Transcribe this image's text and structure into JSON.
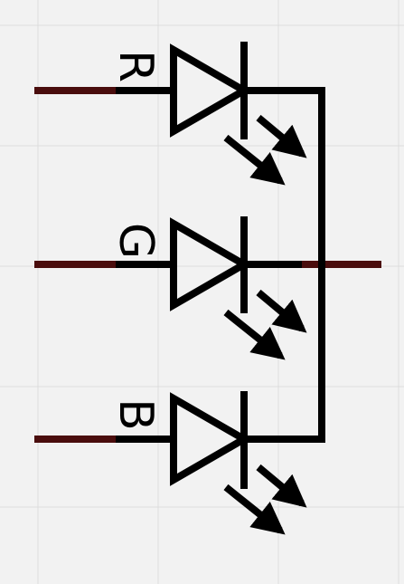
{
  "schematic": {
    "symbol": "rgb-led-common-anode",
    "pins": [
      {
        "id": "red",
        "label": "R"
      },
      {
        "id": "green",
        "label": "G"
      },
      {
        "id": "blue",
        "label": "B"
      }
    ],
    "common_pin": {
      "id": "common"
    }
  },
  "colors": {
    "background": "#f2f2f2",
    "grid": "#dddddd",
    "wire": "#000000",
    "pin_stub": "#4a0d0d"
  }
}
